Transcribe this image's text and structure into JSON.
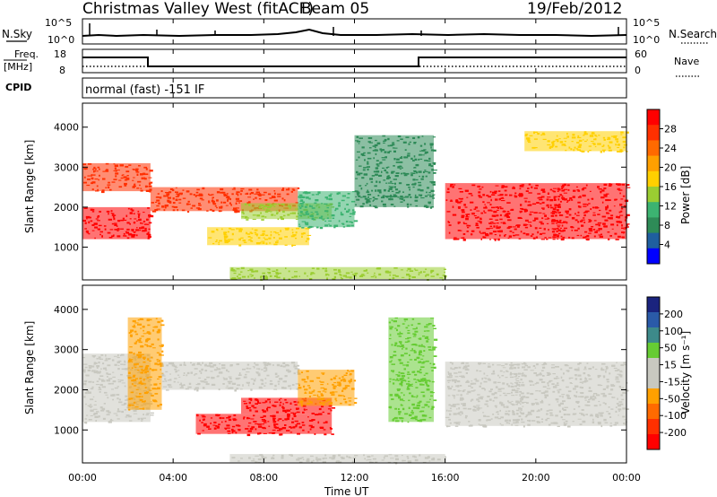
{
  "header": {
    "title": "Christmas Valley West (fitACF)",
    "beam": "Beam 05",
    "date": "19/Feb/2012"
  },
  "strips": {
    "nsky_label": "N.Sky",
    "nsky_ticks": [
      "10^5",
      "10^0"
    ],
    "nsearch_label": "N.Search",
    "nsearch_ticks": [
      "10^5",
      "10^0"
    ],
    "freq_label": "Freq.",
    "freq_unit": "[MHz]",
    "freq_ticks": [
      "18",
      "8"
    ],
    "nave_label": "Nave",
    "nave_ticks": [
      "60",
      "0"
    ],
    "cpid_label": "CPID",
    "cpid_text": "normal (fast) -151 IF"
  },
  "axes": {
    "ylabel": "Slant Range [km]",
    "xlabel": "Time UT",
    "y_ticks": [
      "4000",
      "3000",
      "2000",
      "1000"
    ],
    "x_ticks": [
      "00:00",
      "04:00",
      "08:00",
      "12:00",
      "16:00",
      "20:00",
      "00:00"
    ]
  },
  "colorbars": {
    "power": {
      "label": "Power [dB]",
      "ticks": [
        "28",
        "24",
        "20",
        "16",
        "12",
        "8",
        "4"
      ],
      "colors": [
        "#ff0000",
        "#ff3000",
        "#ff6a00",
        "#ffa000",
        "#ffd000",
        "#9acd32",
        "#3cb371",
        "#2e8b57",
        "#1f5f9f",
        "#0000ff"
      ]
    },
    "velocity": {
      "label": "Velocity [m s⁻¹]",
      "ticks": [
        "200",
        "100",
        "50",
        "15",
        "-15",
        "-50",
        "-100",
        "-200"
      ],
      "colors": [
        "#1a237e",
        "#2a5aa8",
        "#3d8a8a",
        "#66cc33",
        "#c8c8c0",
        "#c8c8c0",
        "#ffa000",
        "#ff6a00",
        "#ff3000",
        "#ff0000"
      ]
    }
  },
  "chart_data": [
    {
      "type": "heatmap",
      "name": "power",
      "xlabel": "Time UT",
      "ylabel": "Slant Range [km]",
      "xlim": [
        0,
        24
      ],
      "ylim": [
        180,
        4600
      ],
      "colorbar_range": [
        0,
        30
      ],
      "regions": [
        {
          "t0": 0.0,
          "t1": 3.0,
          "r0": 1200,
          "r1": 2000,
          "value": 30
        },
        {
          "t0": 0.0,
          "t1": 3.0,
          "r0": 2400,
          "r1": 3100,
          "value": 28
        },
        {
          "t0": 3.0,
          "t1": 9.5,
          "r0": 1900,
          "r1": 2500,
          "value": 27
        },
        {
          "t0": 5.5,
          "t1": 10.0,
          "r0": 1050,
          "r1": 1500,
          "value": 16
        },
        {
          "t0": 7.0,
          "t1": 11.0,
          "r0": 1700,
          "r1": 2100,
          "value": 14
        },
        {
          "t0": 9.5,
          "t1": 12.0,
          "r0": 1500,
          "r1": 2400,
          "value": 10
        },
        {
          "t0": 12.0,
          "t1": 15.5,
          "r0": 2000,
          "r1": 3800,
          "value": 6
        },
        {
          "t0": 16.0,
          "t1": 24.0,
          "r0": 1200,
          "r1": 2600,
          "value": 30
        },
        {
          "t0": 19.5,
          "t1": 24.0,
          "r0": 3400,
          "r1": 3900,
          "value": 18
        },
        {
          "t0": 6.5,
          "t1": 16.0,
          "r0": 200,
          "r1": 500,
          "value": 12
        }
      ]
    },
    {
      "type": "heatmap",
      "name": "velocity",
      "xlabel": "Time UT",
      "ylabel": "Slant Range [km]",
      "xlim": [
        0,
        24
      ],
      "ylim": [
        180,
        4600
      ],
      "colorbar_range": [
        -200,
        200
      ],
      "regions": [
        {
          "t0": 0.0,
          "t1": 3.0,
          "r0": 1200,
          "r1": 2900,
          "value": 0
        },
        {
          "t0": 2.0,
          "t1": 3.5,
          "r0": 1500,
          "r1": 3800,
          "value": -60
        },
        {
          "t0": 3.5,
          "t1": 9.5,
          "r0": 2000,
          "r1": 2700,
          "value": 0
        },
        {
          "t0": 5.0,
          "t1": 11.0,
          "r0": 900,
          "r1": 1400,
          "value": -200
        },
        {
          "t0": 7.0,
          "t1": 11.0,
          "r0": 1400,
          "r1": 1800,
          "value": -200
        },
        {
          "t0": 9.5,
          "t1": 12.0,
          "r0": 1600,
          "r1": 2500,
          "value": -80
        },
        {
          "t0": 13.5,
          "t1": 15.5,
          "r0": 1200,
          "r1": 3800,
          "value": 60
        },
        {
          "t0": 16.0,
          "t1": 24.0,
          "r0": 1100,
          "r1": 2700,
          "value": 0
        },
        {
          "t0": 6.5,
          "t1": 16.0,
          "r0": 200,
          "r1": 400,
          "value": 30
        }
      ]
    }
  ]
}
